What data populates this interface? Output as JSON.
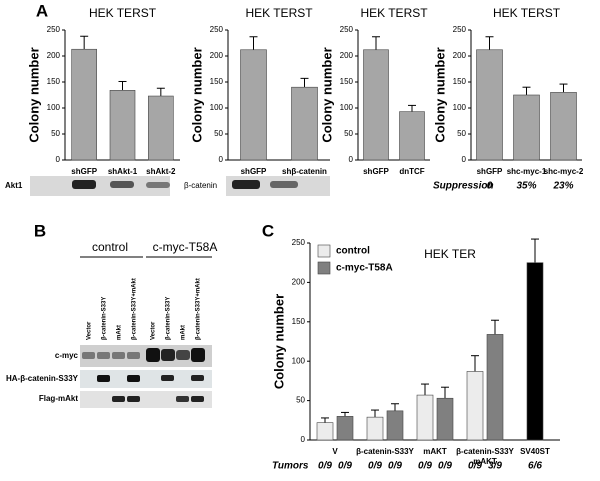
{
  "panels": [
    "A",
    "B",
    "C"
  ],
  "blot_a_labels": [
    "Akt1",
    "β-catenin"
  ],
  "blot_b": {
    "groups": [
      "control",
      "c-myc-T58A"
    ],
    "lanes": [
      "Vector",
      "β-catenin-S33Y",
      "mAkt",
      "β-catenin-S33Y+mAkt",
      "Vector",
      "β-catenin-S33Y",
      "mAkt",
      "β-catenin-S33Y+mAkt"
    ],
    "rows": [
      "c-myc",
      "HA-β-catenin-S33Y",
      "Flag-mAkt"
    ]
  },
  "chart_data": [
    {
      "type": "bar",
      "title": "HEK TERST",
      "y_label": "Colony number",
      "color": "#a6a6a6",
      "categories": [
        "shGFP",
        "shAkt-1",
        "shAkt-2"
      ],
      "values": [
        213,
        134,
        123
      ],
      "error": [
        25,
        17,
        15
      ],
      "ylim": [
        0,
        250
      ],
      "yticks": [
        0,
        50,
        100,
        150,
        200,
        250
      ]
    },
    {
      "type": "bar",
      "title": "HEK TERST",
      "y_label": "Colony number",
      "color": "#a6a6a6",
      "categories": [
        "shGFP",
        "shβ-catenin"
      ],
      "values": [
        212,
        140
      ],
      "error": [
        25,
        17
      ],
      "ylim": [
        0,
        250
      ],
      "yticks": [
        0,
        50,
        100,
        150,
        200,
        250
      ]
    },
    {
      "type": "bar",
      "title": "HEK TERST",
      "y_label": "Colony number",
      "color": "#a6a6a6",
      "categories": [
        "shGFP",
        "dnTCF"
      ],
      "values": [
        212,
        93
      ],
      "error": [
        25,
        12
      ],
      "ylim": [
        0,
        250
      ],
      "yticks": [
        0,
        50,
        100,
        150,
        200,
        250
      ]
    },
    {
      "type": "bar",
      "title": "HEK TERST",
      "y_label": "Colony number",
      "color": "#a6a6a6",
      "categories": [
        "shGFP",
        "shc-myc-1",
        "shc-myc-2"
      ],
      "values": [
        212,
        125,
        130
      ],
      "error": [
        25,
        15,
        16
      ],
      "ylim": [
        0,
        250
      ],
      "yticks": [
        0,
        50,
        100,
        150,
        200,
        250
      ],
      "annotation_row": {
        "label": "Suppression",
        "values": [
          "0",
          "35%",
          "23%"
        ]
      }
    },
    {
      "type": "grouped_bar",
      "title": "HEK TER",
      "y_label": "Colony number",
      "categories": [
        "V",
        "β-catenin-S33Y",
        "mAKT",
        [
          "β-catenin-S33Y",
          "mAKT"
        ],
        "SV40ST"
      ],
      "series": [
        {
          "name": "control",
          "color": "#ececec",
          "values": [
            22,
            29,
            57,
            87,
            null
          ],
          "error": [
            6,
            9,
            14,
            20,
            null
          ]
        },
        {
          "name": "c-myc-T58A",
          "color": "#808080",
          "values": [
            30,
            37,
            53,
            134,
            null
          ],
          "error": [
            5,
            9,
            14,
            18,
            null
          ]
        },
        {
          "color": "#000000",
          "values": [
            null,
            null,
            null,
            null,
            225
          ],
          "error": [
            null,
            null,
            null,
            null,
            30
          ]
        }
      ],
      "ylim": [
        0,
        250
      ],
      "yticks": [
        0,
        50,
        100,
        150,
        200,
        250
      ],
      "annotation_row": {
        "label": "Tumors",
        "values": [
          "0/9",
          "0/9",
          "0/9",
          "0/9",
          "0/9",
          "0/9",
          "0/9",
          "3/9",
          "6/6"
        ]
      }
    }
  ]
}
